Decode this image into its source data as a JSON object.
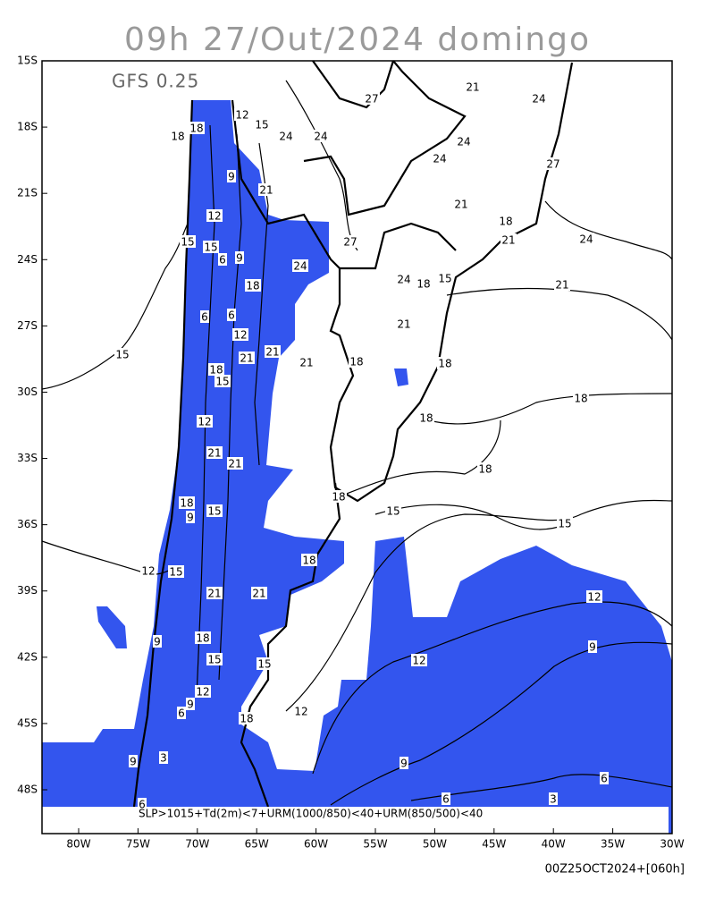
{
  "header": {
    "title": "09h 27/Out/2024 domingo",
    "model": "GFS 0.25"
  },
  "map": {
    "lat_labels": [
      "15S",
      "18S",
      "21S",
      "24S",
      "27S",
      "30S",
      "33S",
      "36S",
      "39S",
      "42S",
      "45S",
      "48S"
    ],
    "lon_labels": [
      "80W",
      "75W",
      "70W",
      "65W",
      "60W",
      "55W",
      "50W",
      "45W",
      "40W",
      "35W",
      "30W"
    ],
    "contour_labels": [
      "21",
      "27",
      "24",
      "12",
      "15",
      "18",
      "18",
      "24",
      "24",
      "24",
      "27",
      "24",
      "9",
      "21",
      "21",
      "18",
      "21",
      "12",
      "15",
      "15",
      "27",
      "24",
      "6",
      "9",
      "24",
      "18",
      "24",
      "18",
      "15",
      "21",
      "6",
      "6",
      "12",
      "21",
      "15",
      "21",
      "21",
      "21",
      "18",
      "18",
      "18",
      "15",
      "18",
      "12",
      "18",
      "21",
      "21",
      "18",
      "18",
      "9",
      "15",
      "18",
      "15",
      "15",
      "18",
      "12",
      "15",
      "21",
      "21",
      "12",
      "9",
      "18",
      "9",
      "15",
      "15",
      "12",
      "12",
      "9",
      "6",
      "18",
      "12",
      "9",
      "3",
      "9",
      "6",
      "6",
      "6",
      "3"
    ],
    "criteria": "SLP>1015+Td(2m)<7+URM(1000/850)<40+URM(850/500)<40",
    "run": "00Z25OCT2024+[060h]"
  }
}
